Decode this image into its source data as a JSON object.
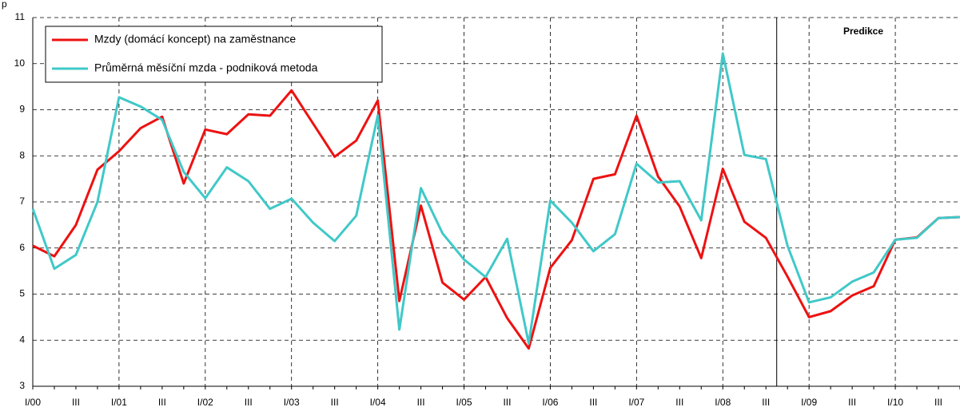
{
  "chart_data": {
    "type": "line",
    "ylabel": "p",
    "annotation": "Predikce",
    "categories": [
      "I/00",
      null,
      "III",
      null,
      "I/01",
      null,
      "III",
      null,
      "I/02",
      null,
      "III",
      null,
      "I/03",
      null,
      "III",
      null,
      "I/04",
      null,
      "III",
      null,
      "I/05",
      null,
      "III",
      null,
      "I/06",
      null,
      "III",
      null,
      "I/07",
      null,
      "III",
      null,
      "I/08",
      null,
      "III",
      null,
      "I/09",
      null,
      "III",
      null,
      "I/10",
      null,
      "III",
      null
    ],
    "series": [
      {
        "name": "Mzdy (domácí koncept) na zaměstnance",
        "color": "#ee1111",
        "values": [
          6.05,
          5.82,
          6.5,
          7.7,
          8.1,
          8.6,
          8.85,
          7.4,
          8.57,
          8.47,
          8.9,
          8.87,
          9.42,
          8.7,
          7.98,
          8.33,
          9.2,
          4.85,
          6.92,
          5.25,
          4.88,
          5.37,
          4.48,
          3.82,
          5.57,
          6.17,
          7.5,
          7.6,
          8.87,
          7.55,
          6.9,
          5.78,
          7.72,
          6.57,
          6.22,
          5.38,
          4.5,
          4.63,
          4.97,
          5.17,
          6.18,
          6.23,
          6.65,
          6.67
        ]
      },
      {
        "name": "Průměrná měsíční mzda - podniková metoda",
        "color": "#40c8c8",
        "values": [
          6.85,
          5.55,
          5.85,
          7.0,
          9.27,
          9.07,
          8.78,
          7.65,
          7.08,
          7.75,
          7.45,
          6.85,
          7.07,
          6.55,
          6.15,
          6.7,
          8.88,
          4.23,
          7.3,
          6.32,
          5.75,
          5.37,
          6.2,
          3.93,
          7.03,
          6.55,
          5.93,
          6.3,
          7.83,
          7.42,
          7.45,
          6.6,
          10.22,
          8.02,
          7.93,
          6.05,
          4.82,
          4.93,
          5.27,
          5.47,
          6.18,
          6.22,
          6.65,
          6.67
        ]
      }
    ],
    "ylim": [
      3,
      11
    ],
    "yticks": [
      3,
      4,
      5,
      6,
      7,
      8,
      9,
      10,
      11
    ],
    "grid": true
  }
}
